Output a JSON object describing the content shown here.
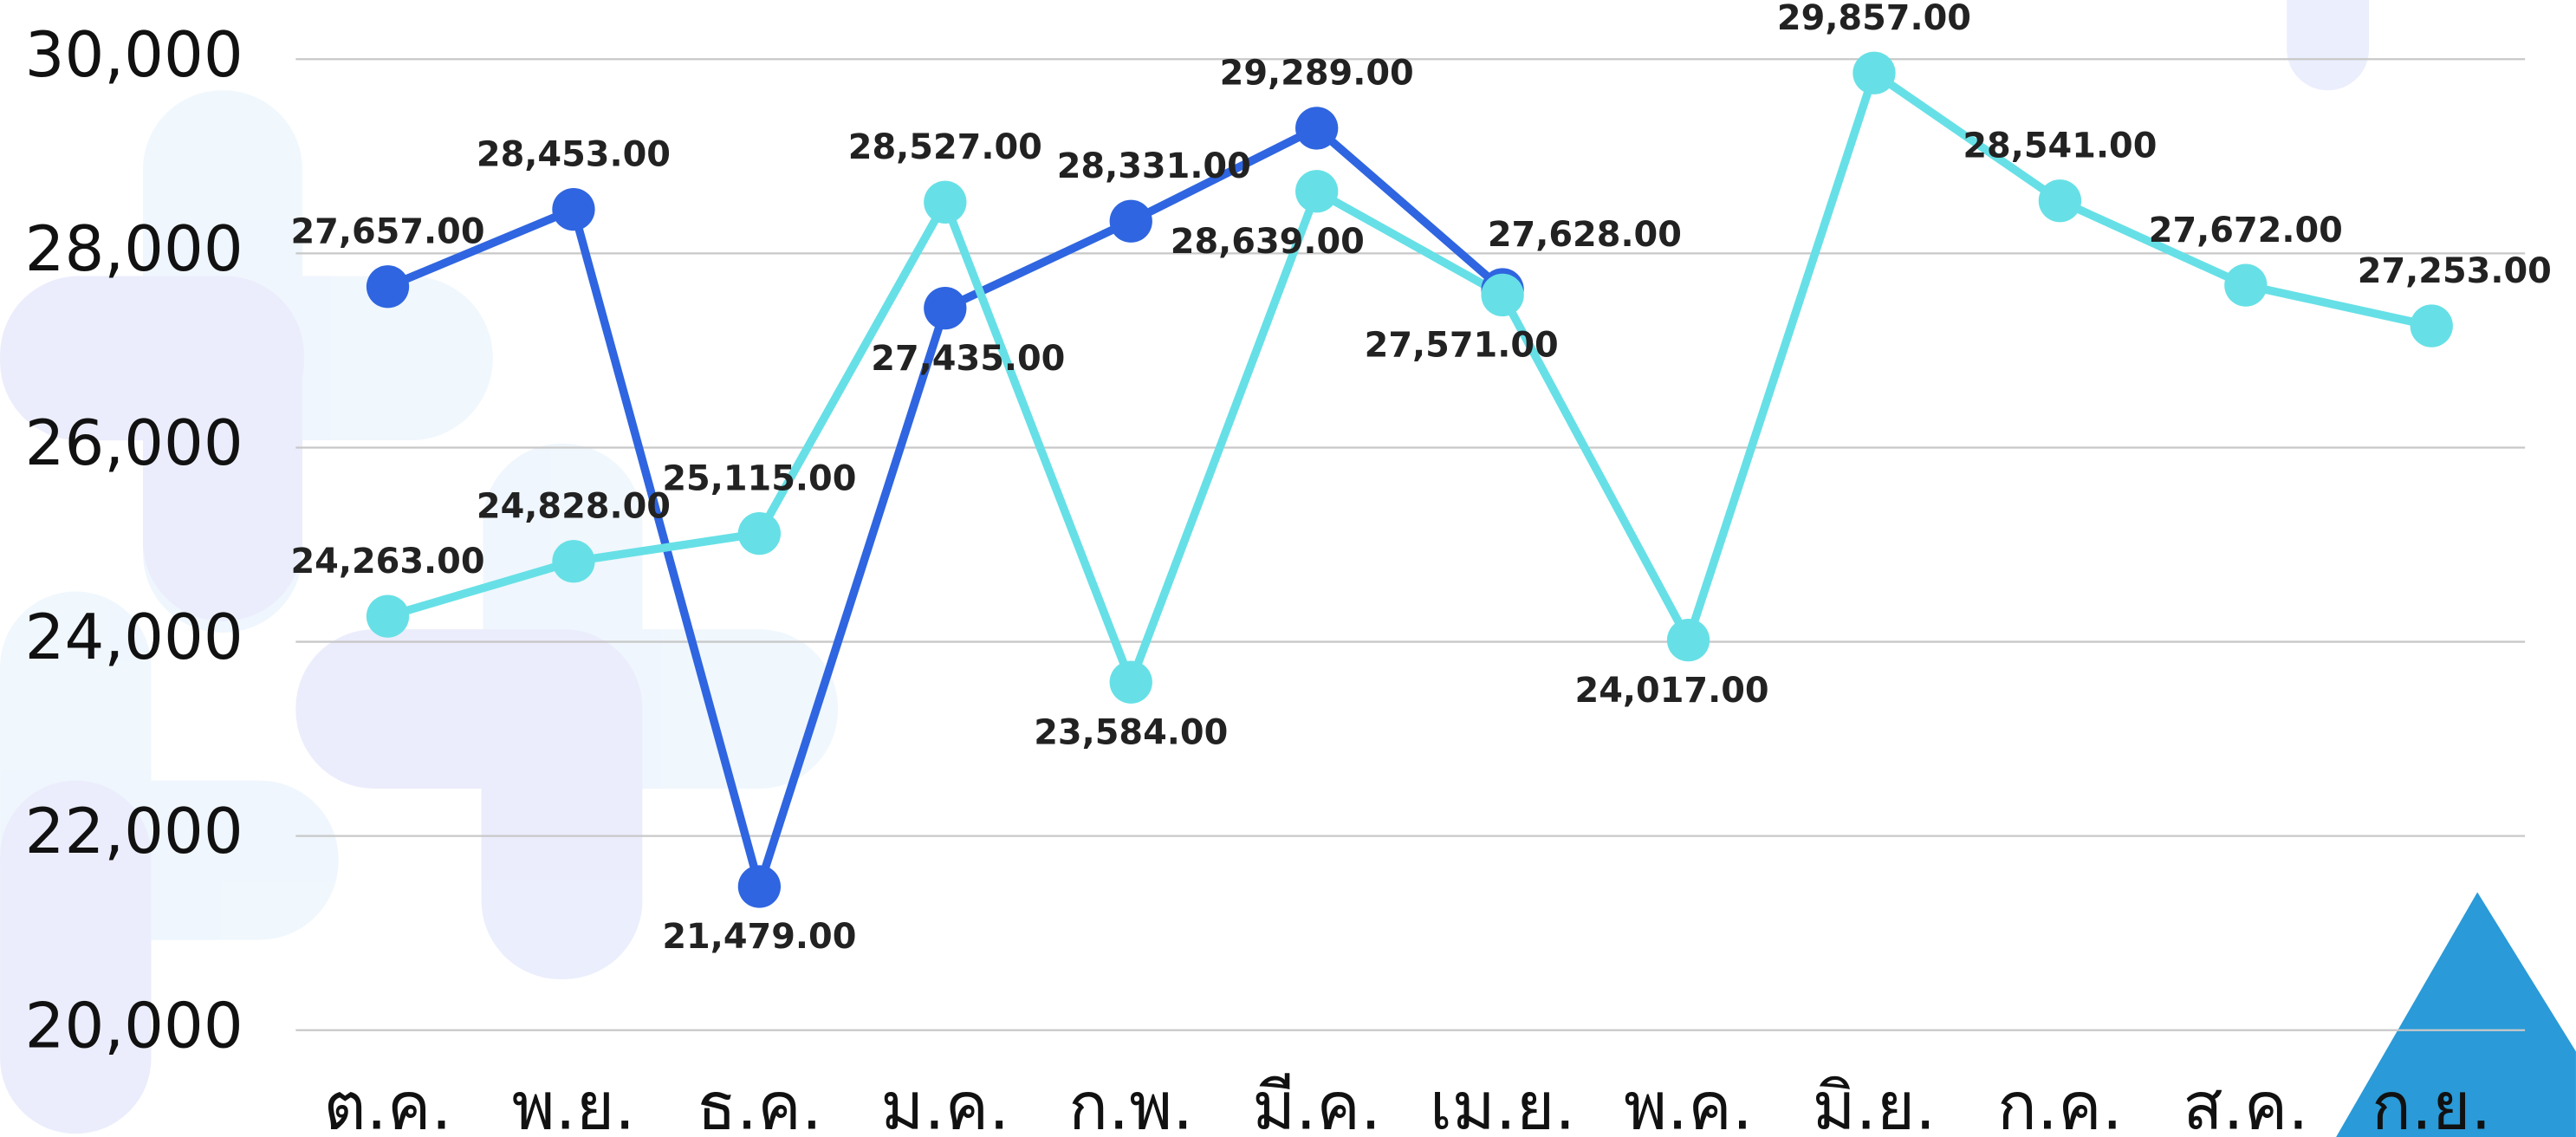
{
  "chart_data": {
    "type": "line",
    "categories": [
      "ต.ค.",
      "พ.ย.",
      "ธ.ค.",
      "ม.ค.",
      "ก.พ.",
      "มี.ค.",
      "เม.ย.",
      "พ.ค.",
      "มิ.ย.",
      "ก.ค.",
      "ส.ค.",
      "ก.ย."
    ],
    "series": [
      {
        "color": "#2f65e0",
        "values": [
          27657,
          28453,
          21479,
          27435,
          28331,
          29289,
          27628,
          null,
          null,
          null,
          null,
          null
        ],
        "value_labels": [
          "27,657.00",
          "28,453.00",
          "21,479.00",
          "27,435.00",
          "28,331.00",
          "29,289.00",
          "27,628.00",
          null,
          null,
          null,
          null,
          null
        ]
      },
      {
        "color": "#66e0e6",
        "values": [
          24263,
          24828,
          25115,
          28527,
          23584,
          28639,
          27571,
          24017,
          29857,
          28541,
          27672,
          27253
        ],
        "value_labels": [
          "24,263.00",
          "24,828.00",
          "25,115.00",
          "28,527.00",
          "23,584.00",
          "28,639.00",
          "27,571.00",
          "24,017.00",
          "29,857.00",
          "28,541.00",
          "27,672.00",
          "27,253.00"
        ]
      }
    ],
    "ylim": [
      20000,
      30000
    ],
    "yticks": [
      {
        "value": 20000,
        "label": "20,000"
      },
      {
        "value": 22000,
        "label": "22,000"
      },
      {
        "value": 24000,
        "label": "24,000"
      },
      {
        "value": 26000,
        "label": "26,000"
      },
      {
        "value": 28000,
        "label": "28,000"
      },
      {
        "value": 30000,
        "label": "30,000"
      }
    ],
    "grid": true
  }
}
